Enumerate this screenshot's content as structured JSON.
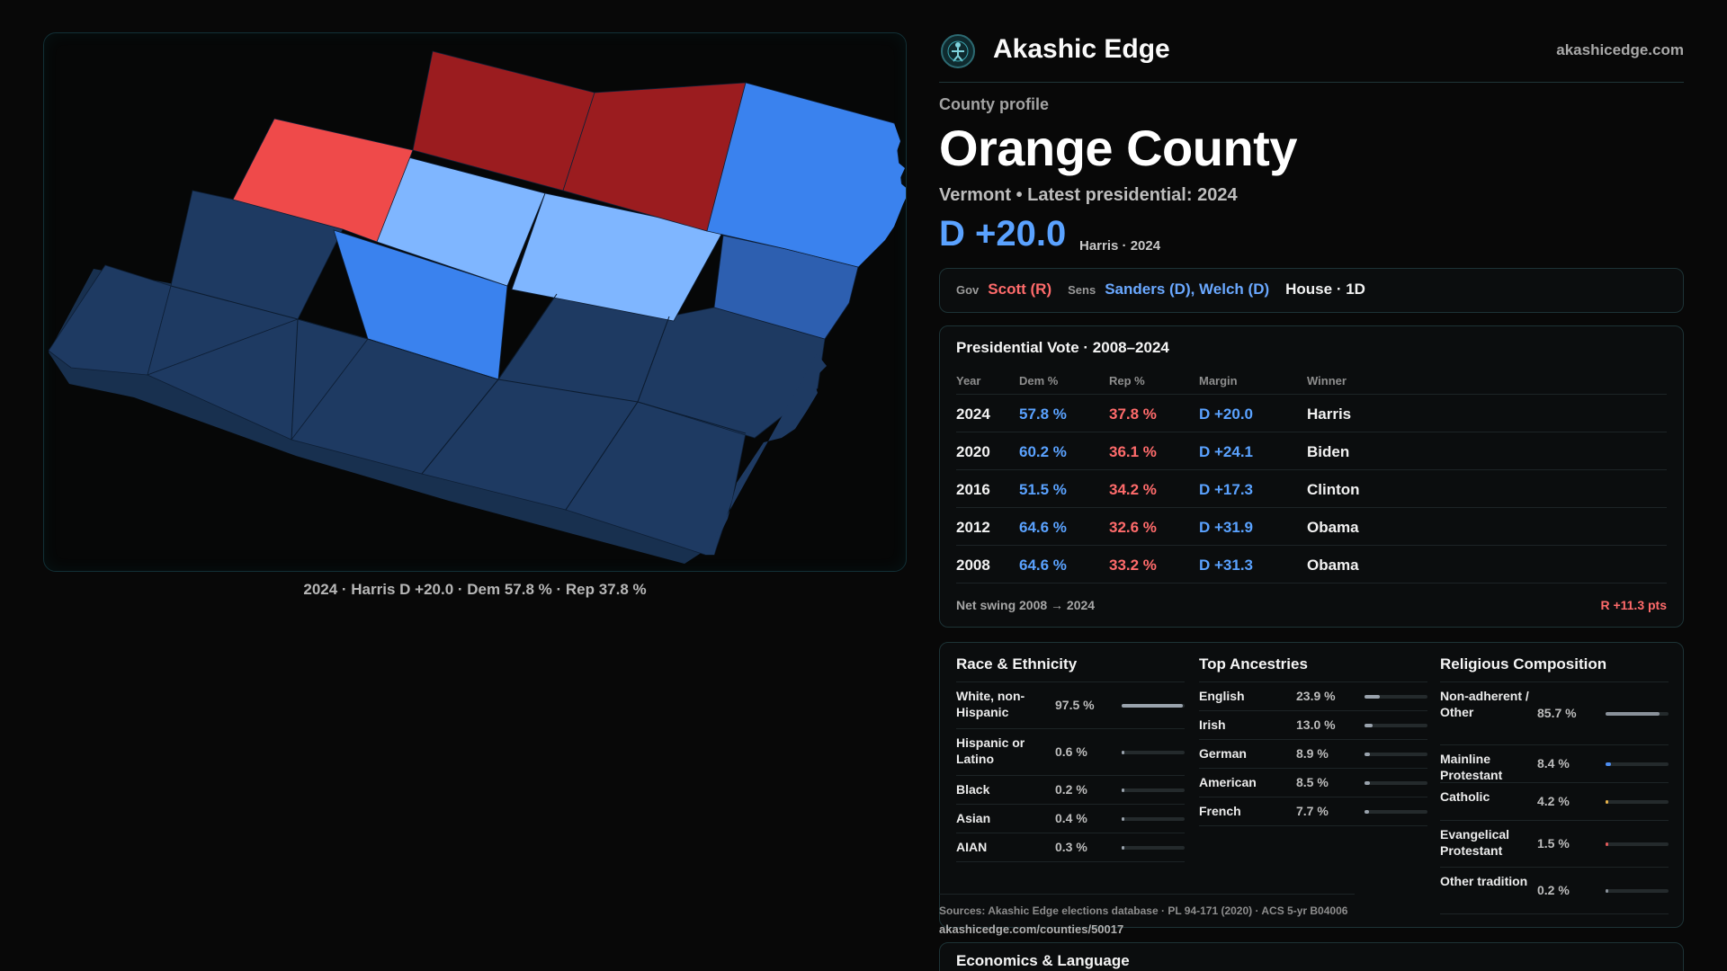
{
  "map": {
    "caption": "2024 · Harris D +20.0 · Dem 57.8 % · Rep 37.8 %",
    "colors": {
      "strong_rep": "#9b1c1f",
      "rep": "#ef4a4a",
      "light_dem": "#7fb6ff",
      "dem": "#3a82ee",
      "dem_mid": "#2d5fb0",
      "dem_dark": "#1e3a62"
    }
  },
  "brand": {
    "name": "Akashic Edge",
    "url": "akashicedge.com",
    "logo_icon": "compass-figure-icon"
  },
  "profile": {
    "eyebrow": "County profile",
    "county": "Orange County",
    "subtitle": "Vermont • Latest presidential: 2024",
    "margin": "D +20.0",
    "margin_note": "Harris · 2024"
  },
  "officials": {
    "gov_label": "Gov",
    "gov": "Scott (R)",
    "sens_label": "Sens",
    "sens": "Sanders (D), Welch (D)",
    "house": "House · 1D"
  },
  "presidential": {
    "title": "Presidential Vote · 2008–2024",
    "headers": {
      "year": "Year",
      "dem": "Dem %",
      "rep": "Rep %",
      "margin": "Margin",
      "winner": "Winner"
    },
    "rows": [
      {
        "year": "2024",
        "dem": "57.8 %",
        "rep": "37.8 %",
        "margin": "D +20.0",
        "winner": "Harris"
      },
      {
        "year": "2020",
        "dem": "60.2 %",
        "rep": "36.1 %",
        "margin": "D +24.1",
        "winner": "Biden"
      },
      {
        "year": "2016",
        "dem": "51.5 %",
        "rep": "34.2 %",
        "margin": "D +17.3",
        "winner": "Clinton"
      },
      {
        "year": "2012",
        "dem": "64.6 %",
        "rep": "32.6 %",
        "margin": "D +31.9",
        "winner": "Obama"
      },
      {
        "year": "2008",
        "dem": "64.6 %",
        "rep": "33.2 %",
        "margin": "D +31.3",
        "winner": "Obama"
      }
    ],
    "swing_label": "Net swing 2008 → 2024",
    "swing_value": "R +11.3 pts"
  },
  "demographics": {
    "race": {
      "title": "Race & Ethnicity",
      "items": [
        {
          "name": "White, non-Hispanic",
          "pct": "97.5 %",
          "value": 97.5,
          "color": "#9aa3ad"
        },
        {
          "name": "Hispanic or Latino",
          "pct": "0.6 %",
          "value": 0.6,
          "color": "#9aa3ad"
        },
        {
          "name": "Black",
          "pct": "0.2 %",
          "value": 0.2,
          "color": "#9aa3ad"
        },
        {
          "name": "Asian",
          "pct": "0.4 %",
          "value": 0.4,
          "color": "#9aa3ad"
        },
        {
          "name": "AIAN",
          "pct": "0.3 %",
          "value": 0.3,
          "color": "#9aa3ad"
        }
      ]
    },
    "ancestry": {
      "title": "Top Ancestries",
      "items": [
        {
          "name": "English",
          "pct": "23.9 %",
          "value": 23.9,
          "color": "#9aa3ad"
        },
        {
          "name": "Irish",
          "pct": "13.0 %",
          "value": 13.0,
          "color": "#9aa3ad"
        },
        {
          "name": "German",
          "pct": "8.9 %",
          "value": 8.9,
          "color": "#9aa3ad"
        },
        {
          "name": "American",
          "pct": "8.5 %",
          "value": 8.5,
          "color": "#9aa3ad"
        },
        {
          "name": "French",
          "pct": "7.7 %",
          "value": 7.7,
          "color": "#9aa3ad"
        }
      ]
    },
    "religion": {
      "title": "Religious Composition",
      "items": [
        {
          "name": "Non-adherent / Other",
          "pct": "85.7 %",
          "value": 85.7,
          "color": "#8a919a"
        },
        {
          "name": "Mainline Protestant",
          "pct": "8.4 %",
          "value": 8.4,
          "color": "#4d8df0"
        },
        {
          "name": "Catholic",
          "pct": "4.2 %",
          "value": 4.2,
          "color": "#e8b24a"
        },
        {
          "name": "Evangelical Protestant",
          "pct": "1.5 %",
          "value": 1.5,
          "color": "#e05a5a"
        },
        {
          "name": "Other tradition",
          "pct": "0.2 %",
          "value": 0.2,
          "color": "#8a919a"
        }
      ]
    }
  },
  "sources": {
    "text": "Sources: Akashic Edge elections database · PL 94-171 (2020) · ACS 5-yr B04006",
    "url": "akashicedge.com/counties/50017"
  },
  "econ": {
    "title": "Economics & Language"
  }
}
